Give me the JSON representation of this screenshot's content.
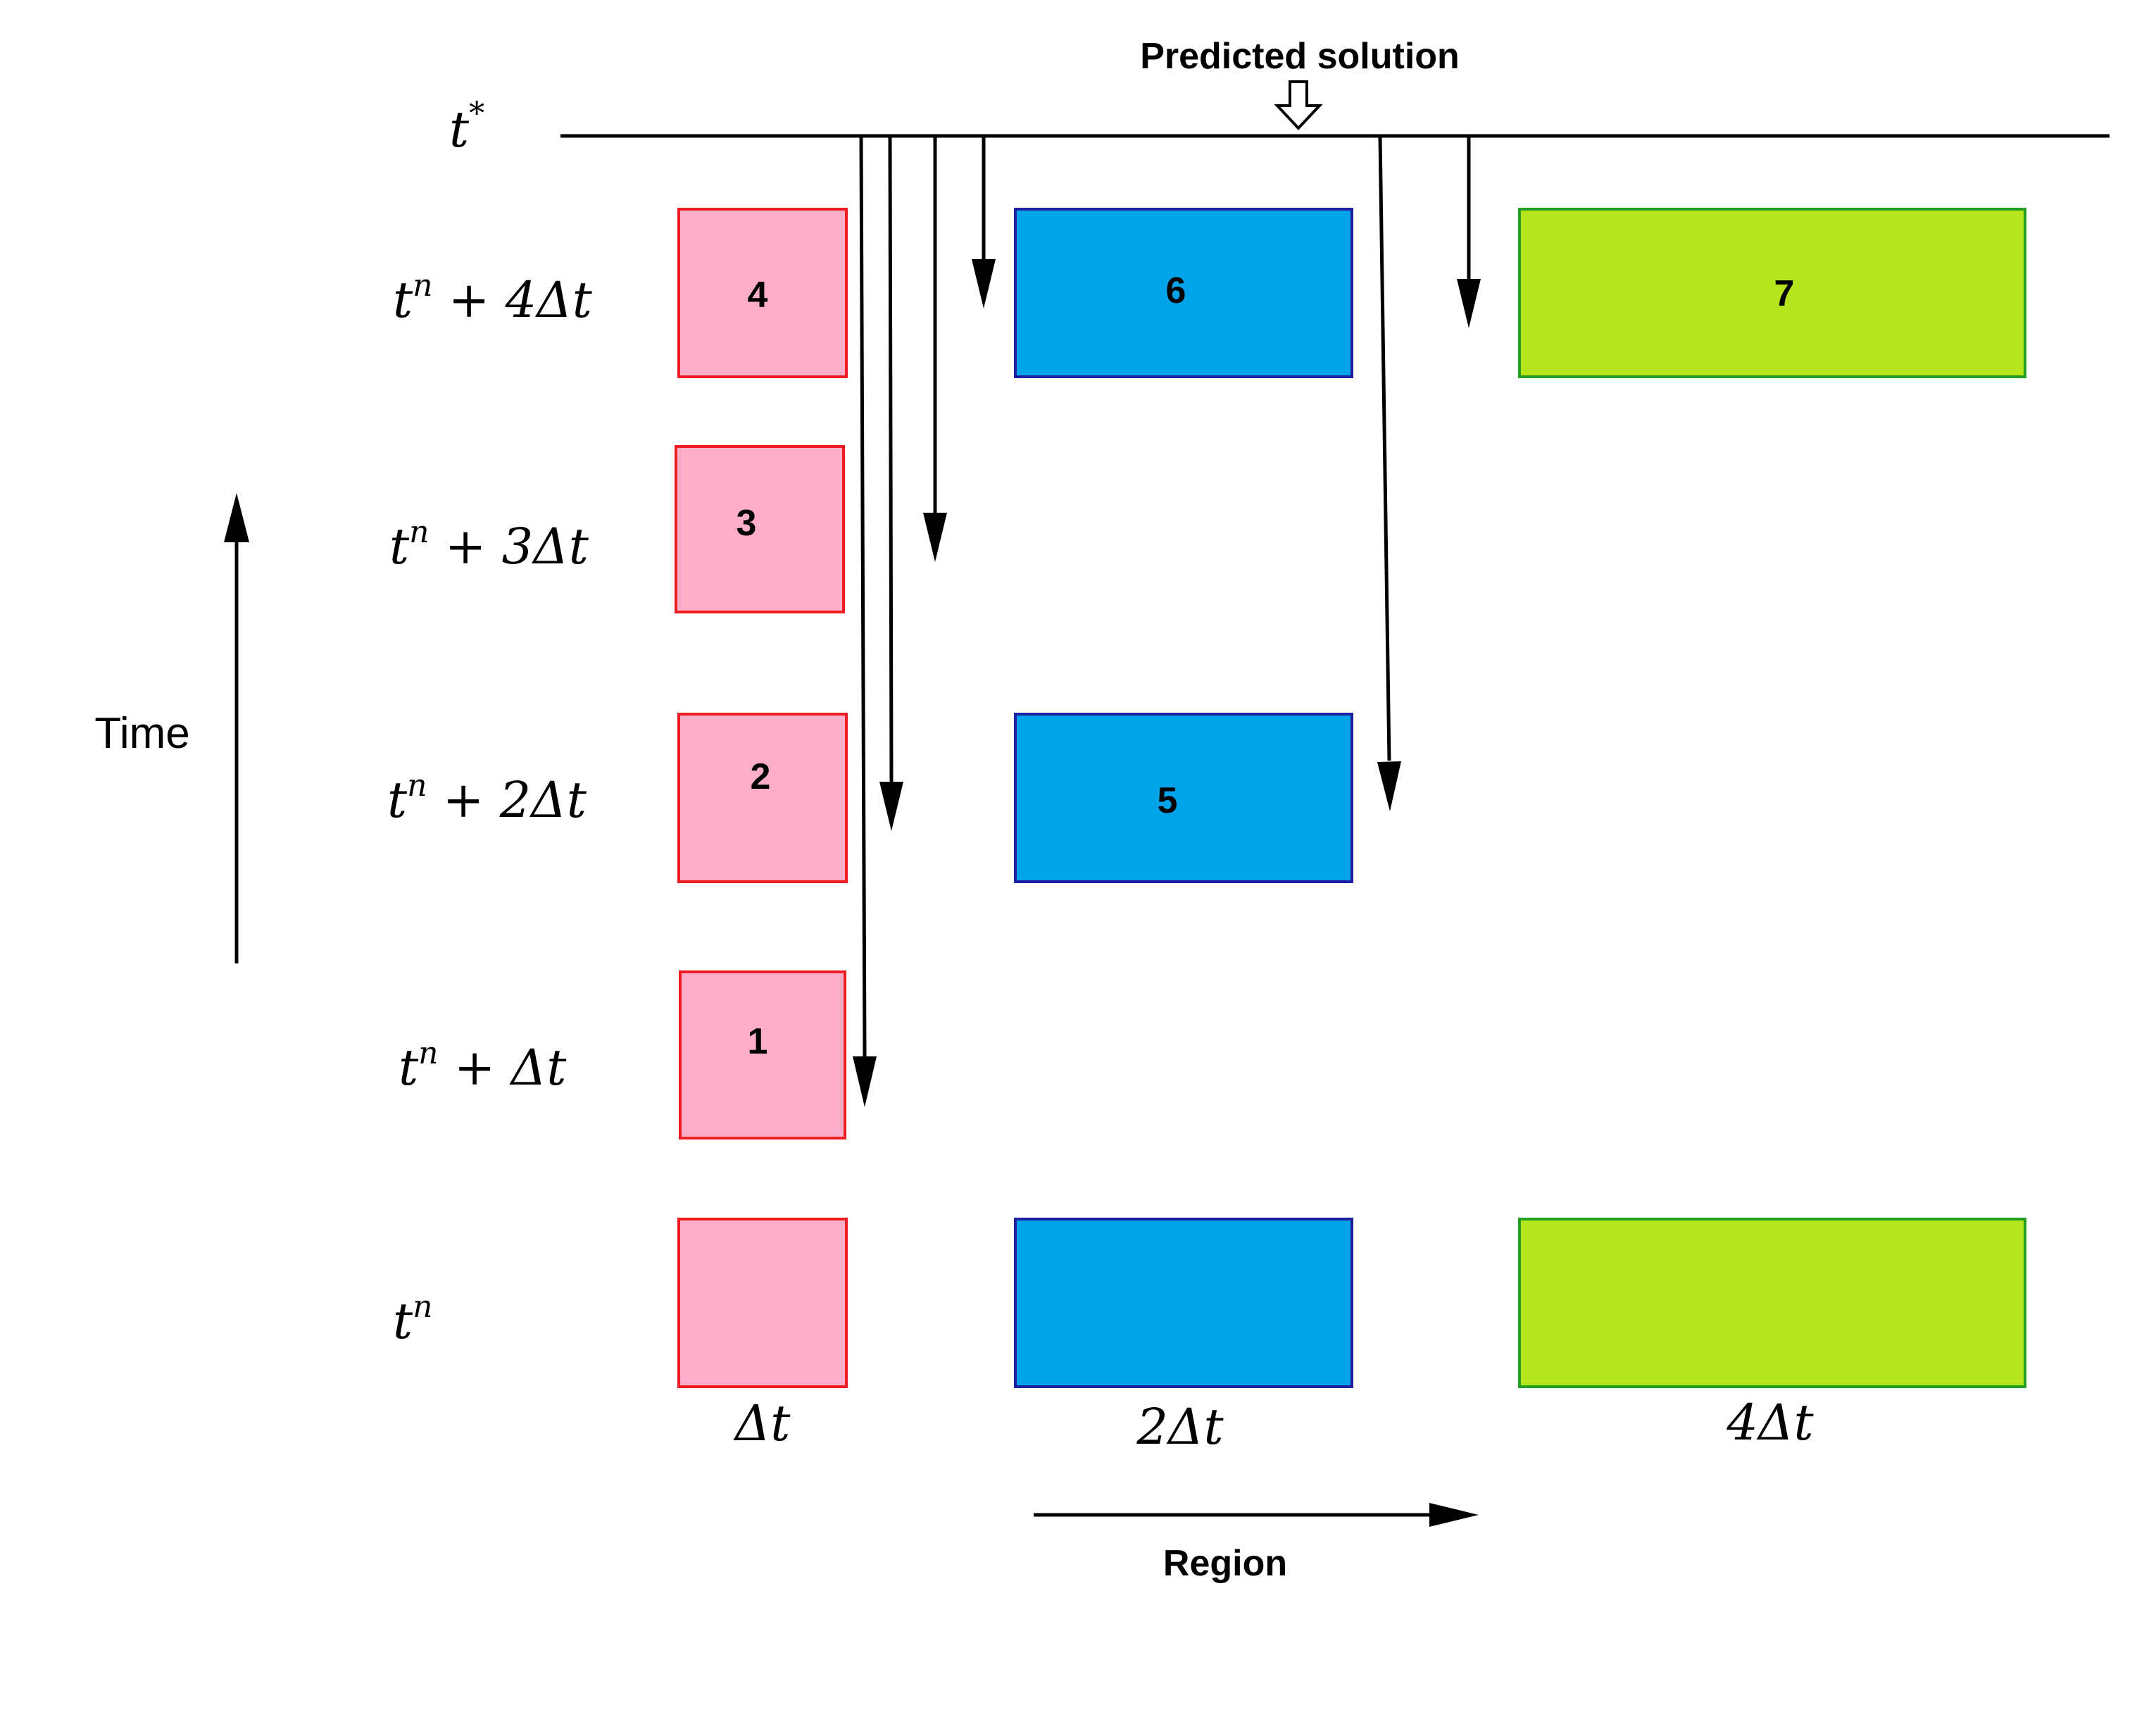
{
  "title": "Predicted solution",
  "axes": {
    "time_label": "Time",
    "region_label": "Region"
  },
  "levels": [
    {
      "id": "t_star",
      "base": "t",
      "sup": "*",
      "rest": ""
    },
    {
      "id": "tn_4",
      "base": "t",
      "sup": "n",
      "rest": " + 4Δt"
    },
    {
      "id": "tn_3",
      "base": "t",
      "sup": "n",
      "rest": " + 3Δt"
    },
    {
      "id": "tn_2",
      "base": "t",
      "sup": "n",
      "rest": " + 2Δt"
    },
    {
      "id": "tn_1",
      "base": "t",
      "sup": "n",
      "rest": " + Δt"
    },
    {
      "id": "tn",
      "base": "t",
      "sup": "n",
      "rest": ""
    }
  ],
  "columns": [
    {
      "id": "pink",
      "step_label": "Δt",
      "fill": "#FFAECA",
      "stroke": "#EE1C24"
    },
    {
      "id": "blue",
      "step_label": "2Δt",
      "fill": "#00A3E7",
      "stroke": "#1F1FA0"
    },
    {
      "id": "green",
      "step_label": "4Δt",
      "fill": "#B5E61D",
      "stroke": "#22A022"
    }
  ],
  "blocks": [
    {
      "id": "pink-4",
      "label": "4"
    },
    {
      "id": "pink-3",
      "label": "3"
    },
    {
      "id": "pink-2",
      "label": "2"
    },
    {
      "id": "pink-1",
      "label": "1"
    },
    {
      "id": "pink-0",
      "label": ""
    },
    {
      "id": "blue-6",
      "label": "6"
    },
    {
      "id": "blue-5",
      "label": "5"
    },
    {
      "id": "blue-0",
      "label": ""
    },
    {
      "id": "green-7",
      "label": "7"
    },
    {
      "id": "green-0",
      "label": ""
    }
  ]
}
